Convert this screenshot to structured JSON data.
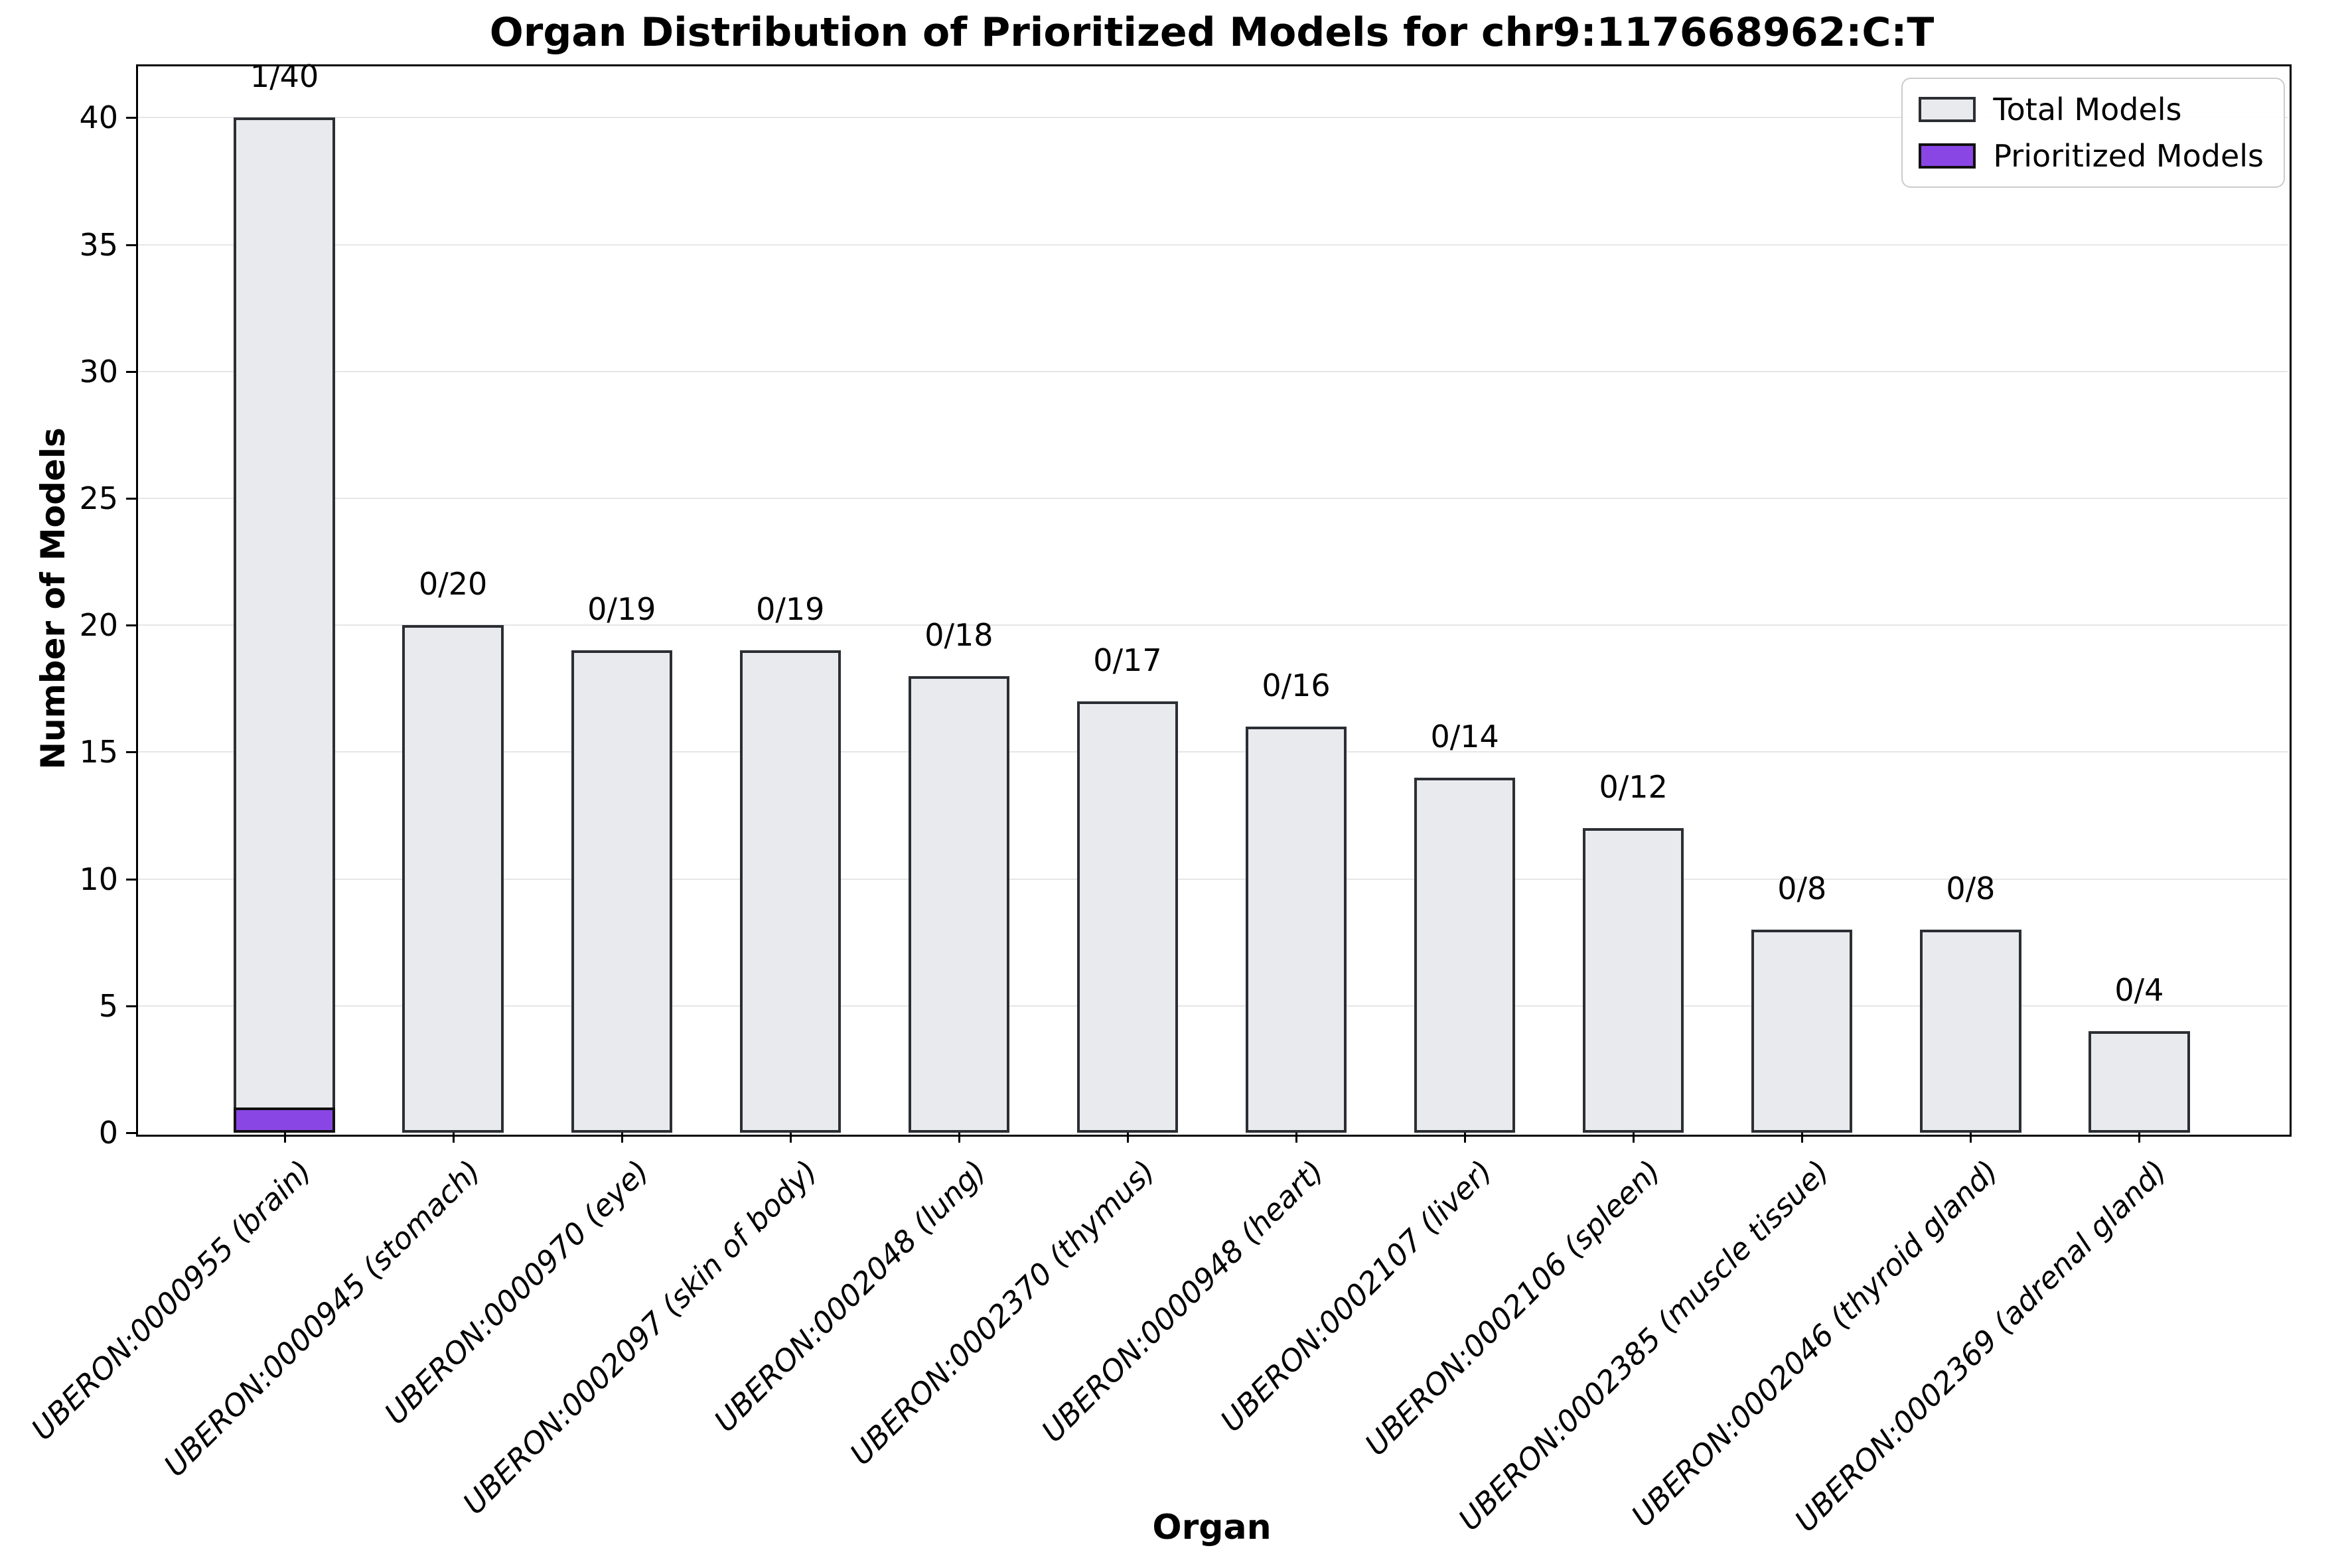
{
  "figure": {
    "title": "Organ Distribution of Prioritized Models for chr9:117668962:C:T"
  },
  "chart_data": {
    "type": "bar",
    "title": "Organ Distribution of Prioritized Models for chr9:117668962:C:T",
    "xlabel": "Organ",
    "ylabel": "Number of Models",
    "categories": [
      "UBERON:0000955 (brain)",
      "UBERON:0000945 (stomach)",
      "UBERON:0000970 (eye)",
      "UBERON:0002097 (skin of body)",
      "UBERON:0002048 (lung)",
      "UBERON:0002370 (thymus)",
      "UBERON:0000948 (heart)",
      "UBERON:0002107 (liver)",
      "UBERON:0002106 (spleen)",
      "UBERON:0002385 (muscle tissue)",
      "UBERON:0002046 (thyroid gland)",
      "UBERON:0002369 (adrenal gland)"
    ],
    "series": [
      {
        "name": "Total Models",
        "values": [
          40,
          20,
          19,
          19,
          18,
          17,
          16,
          14,
          12,
          8,
          8,
          4
        ],
        "fill": "#e9eaee",
        "edge": "#2b2e33"
      },
      {
        "name": "Prioritized Models",
        "values": [
          1,
          0,
          0,
          0,
          0,
          0,
          0,
          0,
          0,
          0,
          0,
          0
        ],
        "fill": "#8a46e4",
        "edge": "#111111"
      }
    ],
    "bar_labels": [
      "1/40",
      "0/20",
      "0/19",
      "0/19",
      "0/18",
      "0/17",
      "0/16",
      "0/14",
      "0/12",
      "0/8",
      "0/8",
      "0/4"
    ],
    "yticks": [
      0,
      5,
      10,
      15,
      20,
      25,
      30,
      35,
      40
    ],
    "ylim": [
      0,
      42.1
    ],
    "grid": "horizontal",
    "grid_color": "#e6e6e6",
    "legend_position": "upper right"
  },
  "legend": {
    "items": [
      {
        "label": "Total Models",
        "fill": "#e9eaee",
        "edge": "#2b2e33"
      },
      {
        "label": "Prioritized Models",
        "fill": "#8a46e4",
        "edge": "#111111"
      }
    ]
  }
}
